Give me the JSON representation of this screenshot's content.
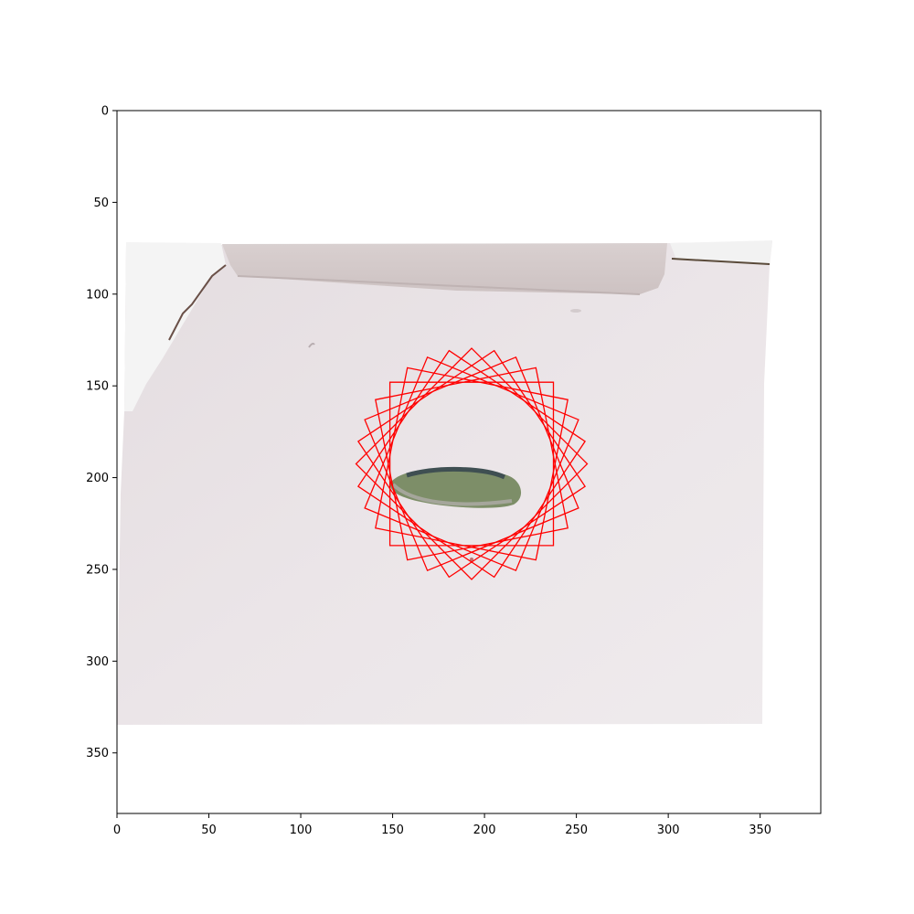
{
  "figure": {
    "axes": {
      "x_ticks": [
        "0",
        "50",
        "100",
        "150",
        "200",
        "250",
        "300",
        "350"
      ],
      "y_ticks": [
        "0",
        "50",
        "100",
        "150",
        "200",
        "250",
        "300",
        "350"
      ],
      "xlim": [
        0,
        383
      ],
      "ylim": [
        383,
        0
      ]
    },
    "image_content": {
      "description_icons": [
        "photo-region",
        "box-edge",
        "shadow-blob"
      ]
    },
    "overlay": {
      "shape": "rotated-square",
      "color": "#ff0000",
      "count": 8,
      "center": [
        193,
        192.5
      ],
      "half_size": 44.5,
      "angles_deg": [
        0,
        11.25,
        22.5,
        33.75,
        45,
        56.25,
        67.5,
        78.75
      ]
    }
  }
}
